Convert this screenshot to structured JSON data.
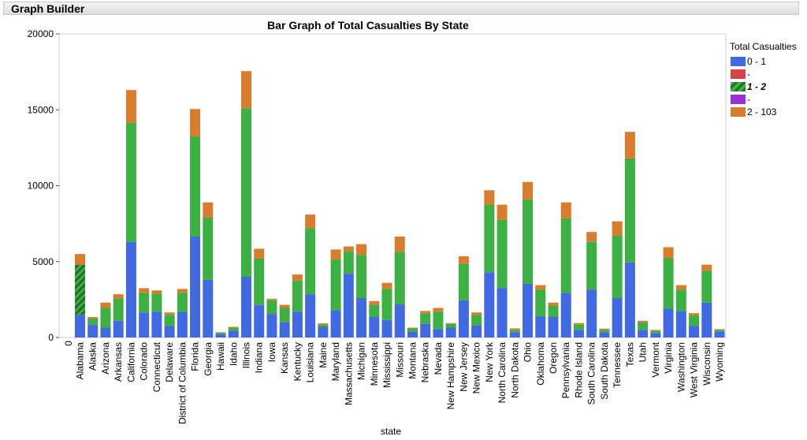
{
  "window": {
    "title": "Graph Builder"
  },
  "legend": {
    "title": "Total Casualties",
    "items": [
      {
        "label": "0 - 1",
        "color": "#4169e1",
        "pattern": false,
        "bold": false
      },
      {
        "label": "-",
        "color": "#d9414a",
        "pattern": false,
        "bold": false
      },
      {
        "label": "1 - 2",
        "color": "#3cb043",
        "pattern": true,
        "bold": true
      },
      {
        "label": "-",
        "color": "#9b2fd6",
        "pattern": false,
        "bold": false
      },
      {
        "label": "2 - 103",
        "color": "#d97c2b",
        "pattern": false,
        "bold": false
      }
    ]
  },
  "chart_data": {
    "type": "bar",
    "stacked": true,
    "title": "Bar Graph of Total Casualties By State",
    "xlabel": "state",
    "ylabel": "",
    "ylim": [
      0,
      20000
    ],
    "yticks": [
      0,
      5000,
      10000,
      15000,
      20000
    ],
    "x_zero_label": "0",
    "grid": false,
    "legend_position": "right",
    "colors": {
      "low": "#4169e1",
      "mid": "#3cb043",
      "high": "#d97c2b"
    },
    "categories": [
      "Alabama",
      "Alaska",
      "Arizona",
      "Arkansas",
      "California",
      "Colorado",
      "Connecticut",
      "Delaware",
      "District of Columbia",
      "Florida",
      "Georgia",
      "Hawaii",
      "Idaho",
      "Illinois",
      "Indiana",
      "Iowa",
      "Kansas",
      "Kentucky",
      "Louisiana",
      "Maine",
      "Maryland",
      "Massachusetts",
      "Michigan",
      "Minnesota",
      "Mississippi",
      "Missouri",
      "Montana",
      "Nebraska",
      "Nevada",
      "New Hampshire",
      "New Jersey",
      "New Mexico",
      "New York",
      "North Carolina",
      "North Dakota",
      "Ohio",
      "Oklahoma",
      "Oregon",
      "Pennsylvania",
      "Rhode Island",
      "South Carolina",
      "South Dakota",
      "Tennessee",
      "Texas",
      "Utah",
      "Vermont",
      "Virginia",
      "Washington",
      "West Virginia",
      "Wisconsin",
      "Wyoming"
    ],
    "series": [
      {
        "name": "0 - 1",
        "values": [
          1500,
          850,
          650,
          1100,
          6300,
          1650,
          1700,
          750,
          1700,
          6650,
          3800,
          220,
          450,
          4000,
          2150,
          1550,
          1000,
          1700,
          2850,
          700,
          1800,
          4200,
          2600,
          1350,
          1150,
          2200,
          400,
          900,
          550,
          650,
          2450,
          800,
          4300,
          3250,
          350,
          3550,
          1400,
          1350,
          2950,
          500,
          3150,
          350,
          2600,
          4950,
          500,
          300,
          1900,
          1750,
          750,
          2300,
          400
        ]
      },
      {
        "name": "1 - 2",
        "values": [
          3300,
          400,
          1300,
          1450,
          7850,
          1300,
          1200,
          750,
          1250,
          6600,
          4100,
          100,
          200,
          11100,
          3050,
          900,
          950,
          2050,
          4350,
          150,
          3350,
          1500,
          2850,
          800,
          2050,
          3450,
          200,
          700,
          1150,
          250,
          2400,
          700,
          4450,
          4500,
          150,
          5550,
          1750,
          750,
          4900,
          350,
          3150,
          150,
          4100,
          6850,
          500,
          150,
          3350,
          1400,
          700,
          2100,
          100
        ]
      },
      {
        "name": "2 - 103",
        "values": [
          700,
          100,
          350,
          300,
          2150,
          300,
          200,
          150,
          250,
          1800,
          1000,
          30,
          50,
          2450,
          650,
          100,
          200,
          400,
          900,
          80,
          650,
          300,
          700,
          250,
          400,
          1000,
          50,
          150,
          250,
          50,
          500,
          150,
          950,
          1000,
          100,
          1150,
          300,
          200,
          1050,
          100,
          650,
          80,
          950,
          1750,
          100,
          50,
          700,
          300,
          150,
          400,
          50
        ]
      }
    ],
    "patterned": [
      {
        "category": "Alabama",
        "series": "1 - 2"
      }
    ]
  }
}
